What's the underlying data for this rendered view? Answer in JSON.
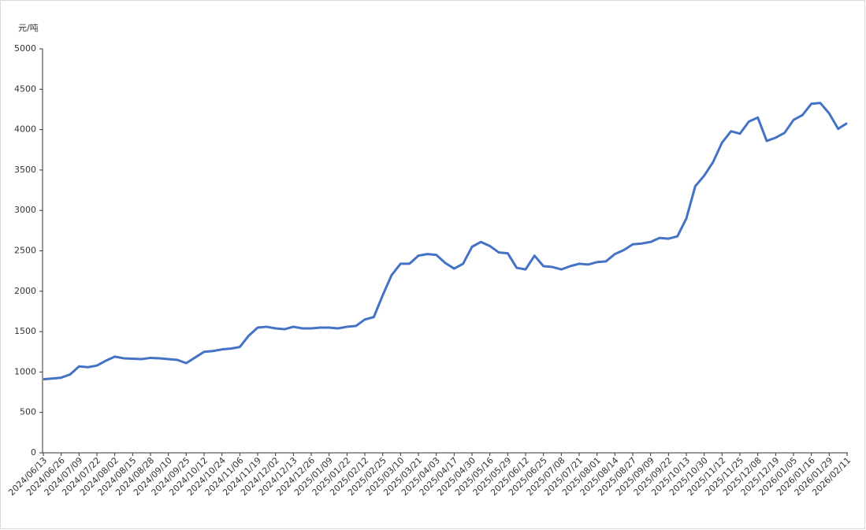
{
  "chart_data": {
    "type": "line",
    "y_label": "元/吨",
    "categories": [
      "2024/06/13",
      null,
      "2024/06/26",
      null,
      "2024/07/09",
      null,
      "2024/07/22",
      null,
      "2024/08/02",
      null,
      "2024/08/15",
      null,
      "2024/08/28",
      null,
      "2024/09/10",
      null,
      "2024/09/25",
      null,
      "2024/10/12",
      null,
      "2024/10/24",
      null,
      "2024/11/06",
      null,
      "2024/11/19",
      null,
      "2024/12/02",
      null,
      "2024/12/13",
      null,
      "2024/12/26",
      null,
      "2025/01/09",
      null,
      "2025/01/22",
      null,
      "2025/02/12",
      null,
      "2025/02/25",
      null,
      "2025/03/10",
      null,
      "2025/03/21",
      null,
      "2025/04/03",
      null,
      "2025/04/17",
      null,
      "2025/04/30",
      null,
      "2025/05/16",
      null,
      "2025/05/29",
      null,
      "2025/06/12",
      null,
      "2025/06/25",
      null,
      "2025/07/08",
      null,
      "2025/07/21",
      null,
      "2025/08/01",
      null,
      "2025/08/14",
      null,
      "2025/08/27",
      null,
      "2025/09/09",
      null,
      "2025/09/22",
      null,
      "2025/10/13",
      null,
      "2025/10/30",
      null,
      "2025/11/12",
      null,
      "2025/11/25",
      null,
      "2025/12/08",
      null,
      "2025/12/19",
      null,
      "2026/01/05",
      null,
      "2026/01/16",
      null,
      "2026/01/29",
      null,
      "2026/02/11"
    ],
    "series": [
      {
        "color": "#4472c4",
        "values": [
          910,
          920,
          930,
          970,
          1070,
          1060,
          1080,
          1140,
          1190,
          1170,
          1165,
          1160,
          1175,
          1170,
          1160,
          1150,
          1110,
          1180,
          1250,
          1260,
          1280,
          1290,
          1310,
          1450,
          1550,
          1560,
          1540,
          1530,
          1560,
          1540,
          1540,
          1550,
          1550,
          1540,
          1560,
          1570,
          1650,
          1680,
          1950,
          2200,
          2340,
          2340,
          2440,
          2460,
          2450,
          2350,
          2280,
          2340,
          2550,
          2610,
          2560,
          2480,
          2470,
          2290,
          2270,
          2440,
          2310,
          2300,
          2270,
          2310,
          2340,
          2330,
          2360,
          2370,
          2460,
          2510,
          2580,
          2590,
          2610,
          2660,
          2650,
          2680,
          2900,
          3300,
          3430,
          3600,
          3840,
          3980,
          3950,
          4100,
          4150,
          3860,
          3900,
          3960,
          4120,
          4180,
          4320,
          4330,
          4200,
          4010,
          4080
        ]
      }
    ],
    "ylim": [
      0,
      5000
    ],
    "yticks": [
      0,
      500,
      1000,
      1500,
      2000,
      2500,
      3000,
      3500,
      4000,
      4500,
      5000
    ]
  }
}
